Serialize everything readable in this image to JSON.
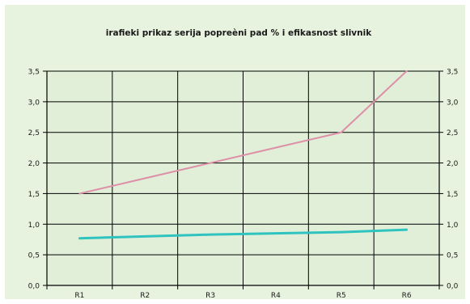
{
  "chart_data": {
    "type": "line",
    "title": "irafieki prikaz serija popreèni pad % i efikasnost slivnik",
    "xlabel": "",
    "ylabel": "",
    "categories": [
      "R1",
      "R2",
      "R3",
      "R4",
      "R5",
      "R6"
    ],
    "ylim": [
      0,
      3.5
    ],
    "yticks": [
      "0,0",
      "0,5",
      "1,0",
      "1,5",
      "2,0",
      "2,5",
      "3,0",
      "3,5"
    ],
    "secondary_yticks": [
      "0,0",
      "0,5",
      "1,0",
      "1,5",
      "2,0",
      "2,5",
      "3,0",
      "3,5"
    ],
    "grid": true,
    "legend": "none",
    "series": [
      {
        "values": [
          1.5,
          1.75,
          2.0,
          2.25,
          2.5,
          3.5
        ],
        "color": "#dd8fa8"
      },
      {
        "values": [
          0.77,
          0.8,
          0.83,
          0.85,
          0.87,
          0.91
        ],
        "color": "#2fc3c0"
      }
    ],
    "colors": {
      "background": "#e7f3df",
      "plot_area": "#e1efd8",
      "grid": "#000000",
      "frame": "#ffffff"
    }
  }
}
